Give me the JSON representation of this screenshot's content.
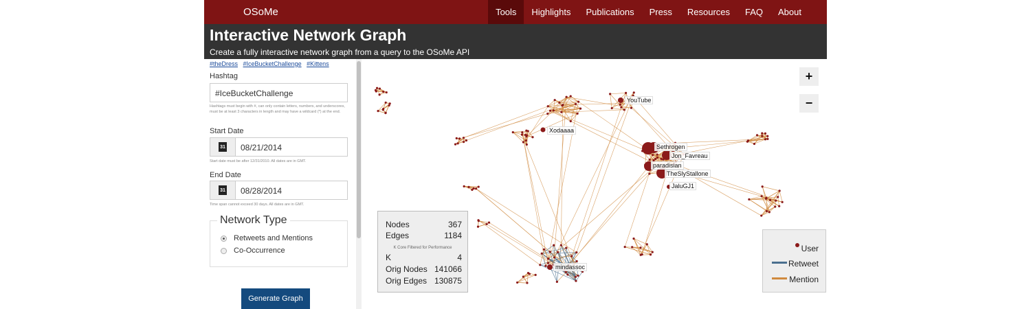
{
  "nav": {
    "brand": "OSoMe",
    "items": [
      {
        "label": "Tools",
        "active": true
      },
      {
        "label": "Highlights"
      },
      {
        "label": "Publications"
      },
      {
        "label": "Press"
      },
      {
        "label": "Resources"
      },
      {
        "label": "FAQ"
      },
      {
        "label": "About"
      }
    ]
  },
  "header": {
    "title": "Interactive Network Graph",
    "subtitle": "Create a fully interactive network graph from a query to the OSoMe API"
  },
  "sidebar": {
    "examples": [
      "#theDress",
      "#IceBucketChallenge",
      "#Kittens"
    ],
    "hashtag_label": "Hashtag",
    "hashtag_value": "#IceBucketChallenge",
    "hashtag_help": "Hashtags must begin with #, can only contain letters, numbers, and underscores, must be at least 3 characters in length and may have a wildcard (*) at the end.",
    "start_label": "Start Date",
    "start_value": "08/21/2014",
    "start_help": "Start date must be after 12/31/2010. All dates are in GMT.",
    "end_label": "End Date",
    "end_value": "08/28/2014",
    "end_help": "Time span cannot exceed 30 days. All dates are in GMT.",
    "calendar_day": "31",
    "network_type_label": "Network Type",
    "options": [
      {
        "label": "Retweets and Mentions",
        "selected": true
      },
      {
        "label": "Co-Occurrence",
        "selected": false
      }
    ],
    "generate_label": "Generate Graph"
  },
  "graph": {
    "zoom_in": "+",
    "zoom_out": "−",
    "labels": [
      "YouTube",
      "Xodaaaa",
      "Sethrogen",
      "Jon_Favreau",
      "paradisian",
      "TheSlyStallone",
      "JaluGJ1",
      "mindassoc"
    ],
    "stats": {
      "nodes_label": "Nodes",
      "nodes": "367",
      "edges_label": "Edges",
      "edges": "1184",
      "note": "K Core Filtered for Performance",
      "k_label": "K",
      "k": "4",
      "orig_nodes_label": "Orig Nodes",
      "orig_nodes": "141066",
      "orig_edges_label": "Orig Edges",
      "orig_edges": "130875"
    },
    "legend": {
      "user": "User",
      "retweet": "Retweet",
      "mention": "Mention"
    },
    "colors": {
      "user": "#8b1a1a",
      "retweet": "#4a6f8f",
      "mention": "#d08a3e"
    }
  }
}
